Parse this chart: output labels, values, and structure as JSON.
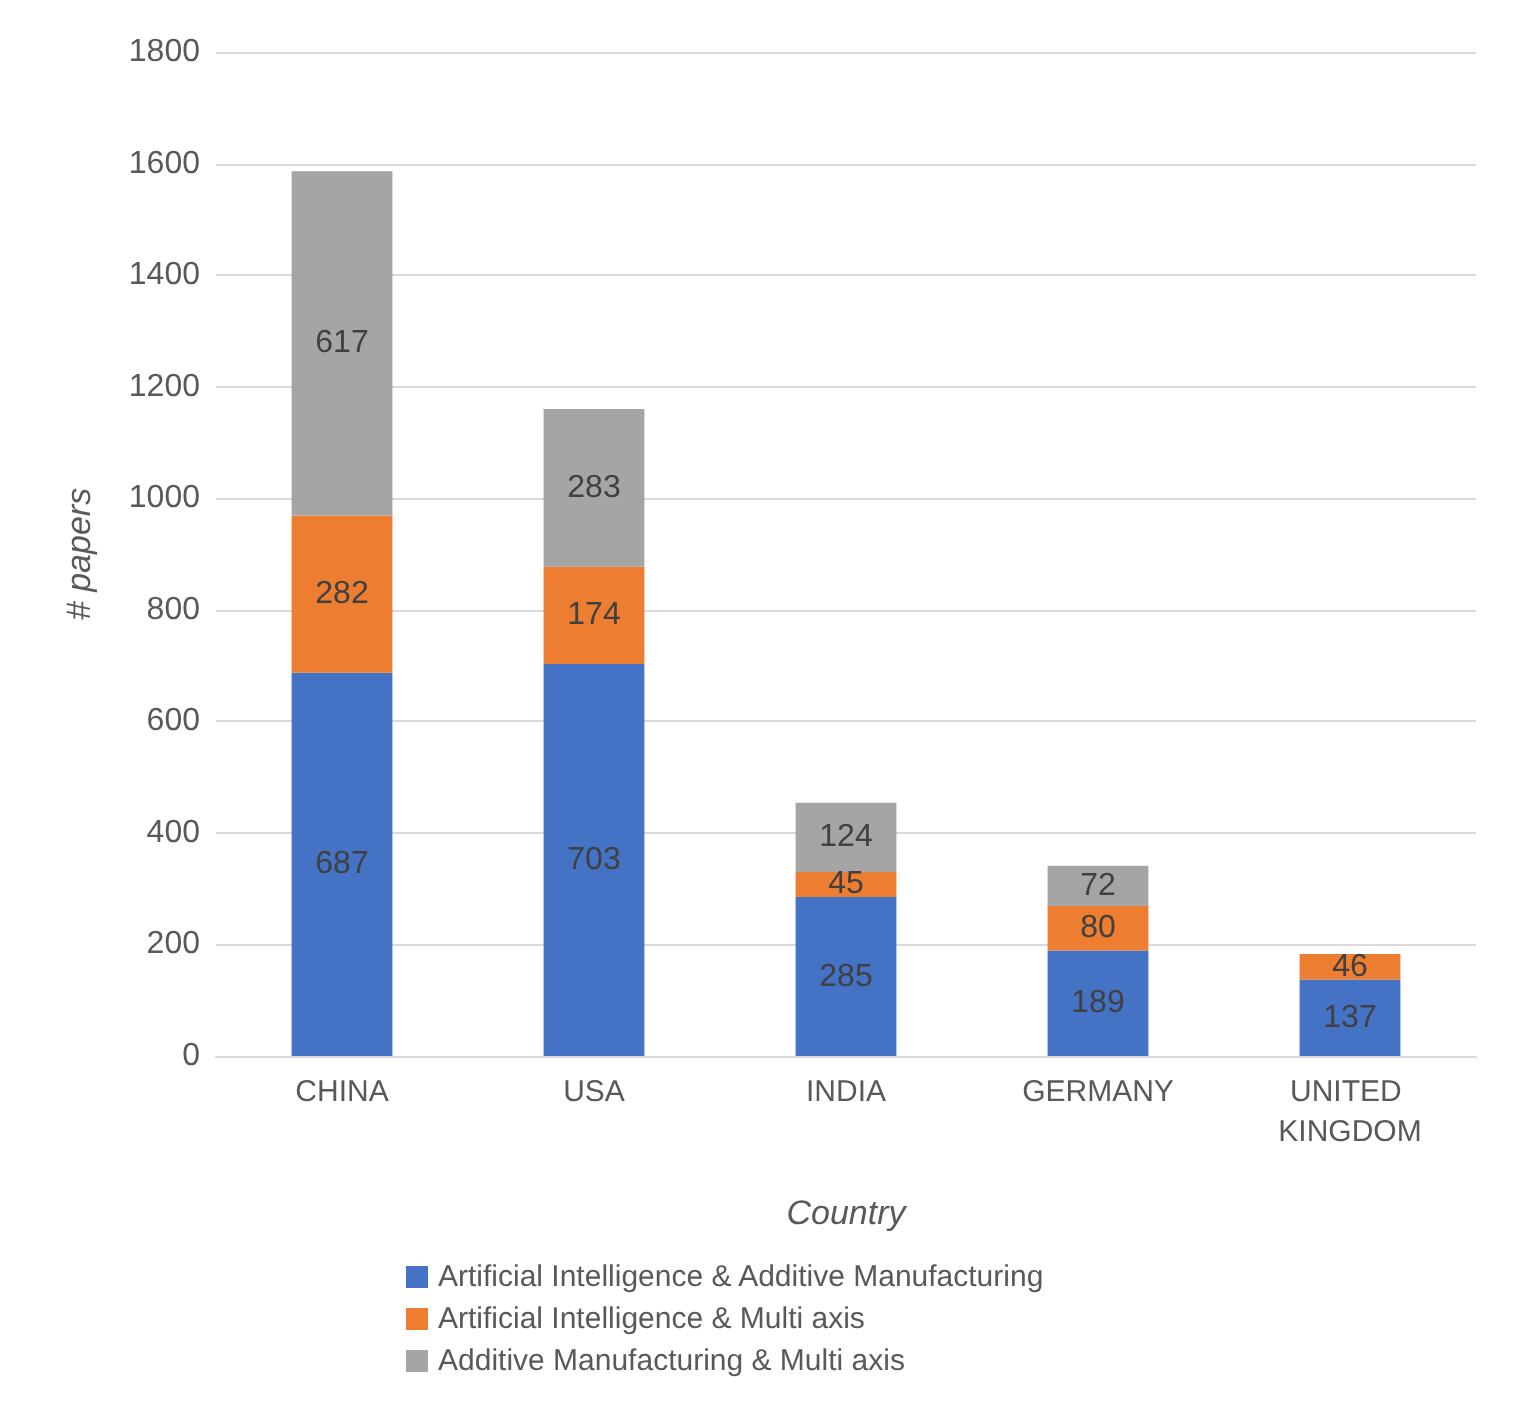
{
  "chart_data": {
    "type": "bar",
    "stacked": true,
    "xlabel": "Country",
    "ylabel": "# papers",
    "categories": [
      "CHINA",
      "USA",
      "INDIA",
      "GERMANY",
      "UNITED KINGDOM"
    ],
    "series": [
      {
        "name": "Artificial Intelligence & Additive Manufacturing",
        "color": "#4472c4",
        "values": [
          687,
          703,
          285,
          189,
          137
        ]
      },
      {
        "name": "Artificial Intelligence & Multi axis",
        "color": "#ed7d31",
        "values": [
          282,
          174,
          45,
          80,
          46
        ]
      },
      {
        "name": "Additive Manufacturing & Multi axis",
        "color": "#a5a5a5",
        "values": [
          617,
          283,
          124,
          72,
          null
        ]
      }
    ],
    "ylim": [
      0,
      1800
    ],
    "yticks": [
      0,
      200,
      400,
      600,
      800,
      1000,
      1200,
      1400,
      1600,
      1800
    ],
    "grid": "y",
    "legend": "bottom",
    "data_labels": true
  }
}
